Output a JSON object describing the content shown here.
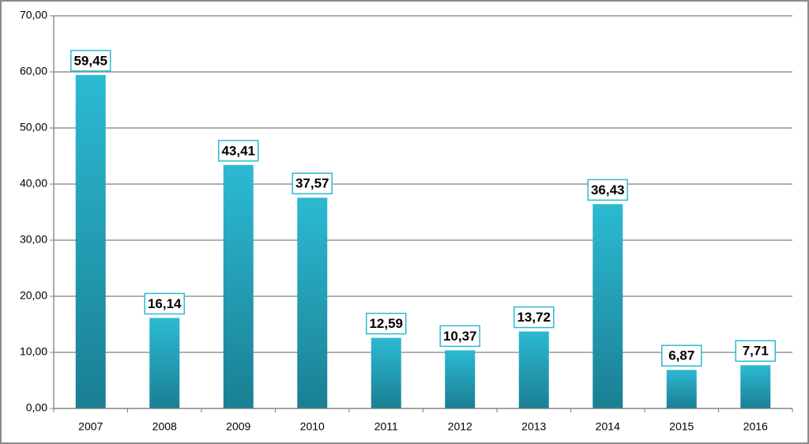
{
  "chart_data": {
    "type": "bar",
    "categories": [
      "2007",
      "2008",
      "2009",
      "2010",
      "2011",
      "2012",
      "2013",
      "2014",
      "2015",
      "2016"
    ],
    "values": [
      59.45,
      16.14,
      43.41,
      37.57,
      12.59,
      10.37,
      13.72,
      36.43,
      6.87,
      7.71
    ],
    "value_labels": [
      "59,45",
      "16,14",
      "43,41",
      "37,57",
      "12,59",
      "10,37",
      "13,72",
      "36,43",
      "6,87",
      "7,71"
    ],
    "color": "#2cbad3",
    "ylim": [
      0,
      70
    ],
    "yticks": [
      {
        "value": 0,
        "label": "0,00"
      },
      {
        "value": 10,
        "label": "10,00"
      },
      {
        "value": 20,
        "label": "20,00"
      },
      {
        "value": 30,
        "label": "30,00"
      },
      {
        "value": 40,
        "label": "40,00"
      },
      {
        "value": 50,
        "label": "50,00"
      },
      {
        "value": 60,
        "label": "60,00"
      },
      {
        "value": 70,
        "label": "70,00"
      }
    ],
    "grid": true
  }
}
